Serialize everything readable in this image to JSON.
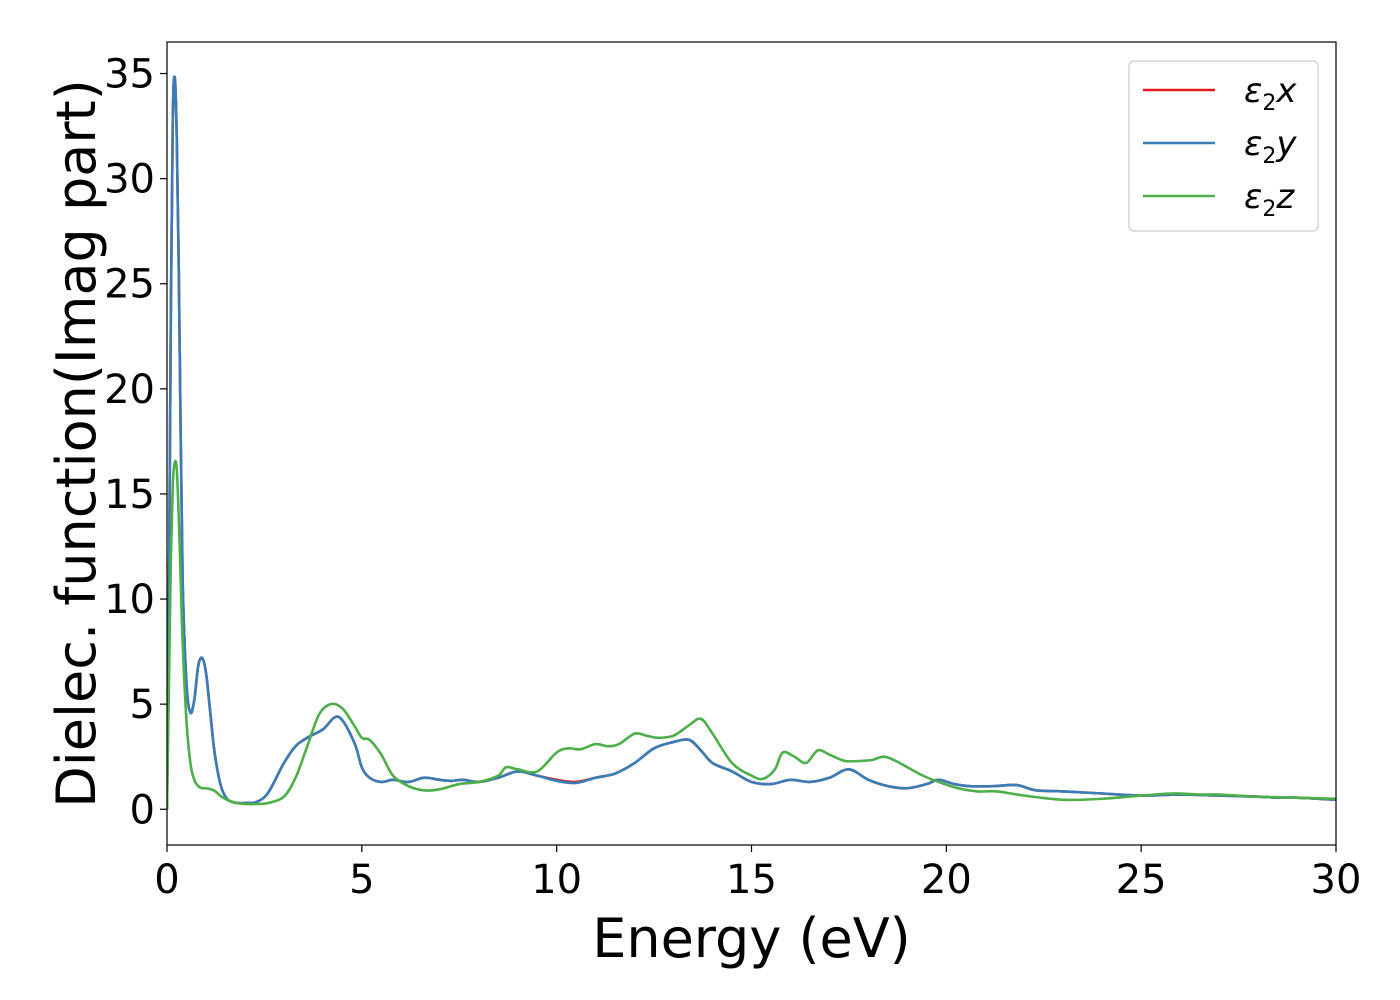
{
  "chart_data": {
    "type": "line",
    "xlabel": "Energy (eV)",
    "ylabel": "Dielec. function(Imag part)",
    "xlim": [
      0,
      30
    ],
    "ylim": [
      -1.7,
      36.5
    ],
    "xticks": [
      0,
      5,
      10,
      15,
      20,
      25,
      30
    ],
    "yticks": [
      0,
      5,
      10,
      15,
      20,
      25,
      30,
      35
    ],
    "xtick_labels": [
      "0",
      "5",
      "10",
      "15",
      "20",
      "25",
      "30"
    ],
    "ytick_labels": [
      "0",
      "5",
      "10",
      "15",
      "20",
      "25",
      "30",
      "35"
    ],
    "grid": false,
    "legend_position": "top-right",
    "series": [
      {
        "name": "ε2x",
        "name_base": "ε",
        "name_sub": "2",
        "name_tail": "x",
        "color": "#e41a1c",
        "x": [
          0,
          0.05,
          0.1,
          0.15,
          0.2,
          0.25,
          0.3,
          0.35,
          0.4,
          0.5,
          0.6,
          0.7,
          0.8,
          0.9,
          1.0,
          1.1,
          1.2,
          1.3,
          1.4,
          1.5,
          1.6,
          1.8,
          2.0,
          2.3,
          2.6,
          3.0,
          3.3,
          3.6,
          4.0,
          4.4,
          4.8,
          5.0,
          5.2,
          5.5,
          5.8,
          6.2,
          6.6,
          7.0,
          7.3,
          7.6,
          8.0,
          8.5,
          9.0,
          9.5,
          10.0,
          10.5,
          11.0,
          11.5,
          12.0,
          12.5,
          13.0,
          13.4,
          13.7,
          14.0,
          14.5,
          15.0,
          15.5,
          16.0,
          16.5,
          17.0,
          17.5,
          18.0,
          18.5,
          19.0,
          19.5,
          19.8,
          20.2,
          20.6,
          21.2,
          21.8,
          22.3,
          23.0,
          24.0,
          25.0,
          26.0,
          27.0,
          28.0,
          28.5,
          29.0,
          30.0
        ],
        "y": [
          0,
          10,
          24,
          33,
          34.8,
          32,
          26,
          18,
          11,
          6,
          4.6,
          5.2,
          6.8,
          7.2,
          6.5,
          4.8,
          3.0,
          1.8,
          1.0,
          0.6,
          0.4,
          0.3,
          0.3,
          0.35,
          0.8,
          2.2,
          3.0,
          3.4,
          3.8,
          4.4,
          3.2,
          2.0,
          1.5,
          1.3,
          1.4,
          1.3,
          1.5,
          1.4,
          1.35,
          1.4,
          1.3,
          1.5,
          1.8,
          1.6,
          1.4,
          1.3,
          1.5,
          1.7,
          2.2,
          2.9,
          3.2,
          3.3,
          2.8,
          2.2,
          1.8,
          1.3,
          1.2,
          1.4,
          1.3,
          1.5,
          1.9,
          1.4,
          1.1,
          1.0,
          1.2,
          1.4,
          1.2,
          1.1,
          1.1,
          1.15,
          0.9,
          0.85,
          0.75,
          0.65,
          0.7,
          0.65,
          0.6,
          0.55,
          0.55,
          0.45
        ]
      },
      {
        "name": "ε2y",
        "name_base": "ε",
        "name_sub": "2",
        "name_tail": "y",
        "color": "#377eb8",
        "x": [
          0,
          0.05,
          0.1,
          0.15,
          0.2,
          0.25,
          0.3,
          0.35,
          0.4,
          0.5,
          0.6,
          0.7,
          0.8,
          0.9,
          1.0,
          1.1,
          1.2,
          1.3,
          1.4,
          1.5,
          1.6,
          1.8,
          2.0,
          2.3,
          2.6,
          3.0,
          3.3,
          3.6,
          4.0,
          4.4,
          4.8,
          5.0,
          5.2,
          5.5,
          5.8,
          6.2,
          6.6,
          7.0,
          7.3,
          7.6,
          8.0,
          8.5,
          9.0,
          9.5,
          10.0,
          10.5,
          11.0,
          11.5,
          12.0,
          12.5,
          13.0,
          13.4,
          13.7,
          14.0,
          14.5,
          15.0,
          15.5,
          16.0,
          16.5,
          17.0,
          17.5,
          18.0,
          18.5,
          19.0,
          19.5,
          19.8,
          20.2,
          20.6,
          21.2,
          21.8,
          22.3,
          23.0,
          24.0,
          25.0,
          26.0,
          27.0,
          28.0,
          28.5,
          29.0,
          30.0
        ],
        "y": [
          0,
          10,
          24,
          33,
          34.8,
          32,
          26,
          18,
          11,
          6,
          4.6,
          5.2,
          6.8,
          7.2,
          6.5,
          4.8,
          3.0,
          1.8,
          1.0,
          0.6,
          0.4,
          0.3,
          0.3,
          0.35,
          0.8,
          2.2,
          3.0,
          3.4,
          3.8,
          4.4,
          3.2,
          2.0,
          1.5,
          1.3,
          1.4,
          1.3,
          1.5,
          1.4,
          1.35,
          1.4,
          1.3,
          1.5,
          1.8,
          1.6,
          1.35,
          1.25,
          1.5,
          1.7,
          2.2,
          2.9,
          3.2,
          3.3,
          2.8,
          2.2,
          1.8,
          1.3,
          1.2,
          1.4,
          1.3,
          1.5,
          1.9,
          1.4,
          1.1,
          1.0,
          1.2,
          1.4,
          1.2,
          1.1,
          1.1,
          1.15,
          0.9,
          0.85,
          0.75,
          0.65,
          0.7,
          0.65,
          0.6,
          0.55,
          0.55,
          0.45
        ]
      },
      {
        "name": "ε2z",
        "name_base": "ε",
        "name_sub": "2",
        "name_tail": "z",
        "color": "#4daf4a",
        "x": [
          0,
          0.05,
          0.1,
          0.15,
          0.2,
          0.25,
          0.3,
          0.35,
          0.4,
          0.5,
          0.6,
          0.7,
          0.8,
          0.9,
          1.0,
          1.2,
          1.4,
          1.6,
          1.8,
          2.0,
          2.3,
          2.6,
          3.0,
          3.3,
          3.6,
          3.9,
          4.2,
          4.5,
          4.8,
          5.0,
          5.2,
          5.5,
          5.8,
          6.2,
          6.6,
          7.0,
          7.5,
          8.0,
          8.5,
          8.7,
          9.0,
          9.5,
          10.0,
          10.3,
          10.6,
          11.0,
          11.3,
          11.6,
          12.0,
          12.3,
          12.6,
          13.0,
          13.4,
          13.7,
          14.0,
          14.5,
          15.0,
          15.3,
          15.6,
          15.8,
          16.1,
          16.4,
          16.7,
          17.0,
          17.4,
          17.8,
          18.1,
          18.4,
          18.7,
          19.0,
          19.4,
          19.8,
          20.3,
          20.8,
          21.3,
          22.0,
          23.0,
          24.0,
          25.0,
          25.8,
          26.5,
          27.0,
          28.0,
          29.0,
          30.0
        ],
        "y": [
          0,
          6,
          12,
          15.5,
          16.5,
          16.2,
          14,
          11,
          8,
          4.2,
          2.2,
          1.4,
          1.1,
          1.0,
          1.0,
          0.9,
          0.6,
          0.4,
          0.3,
          0.25,
          0.25,
          0.3,
          0.6,
          1.5,
          3.0,
          4.5,
          5.0,
          4.8,
          4.0,
          3.4,
          3.3,
          2.6,
          1.6,
          1.1,
          0.9,
          0.95,
          1.2,
          1.3,
          1.6,
          2.0,
          1.9,
          1.8,
          2.7,
          2.9,
          2.85,
          3.1,
          3.0,
          3.1,
          3.6,
          3.5,
          3.4,
          3.5,
          4.0,
          4.3,
          3.6,
          2.2,
          1.6,
          1.45,
          1.9,
          2.7,
          2.5,
          2.2,
          2.8,
          2.6,
          2.3,
          2.3,
          2.35,
          2.5,
          2.3,
          2.0,
          1.6,
          1.3,
          1.0,
          0.85,
          0.85,
          0.65,
          0.45,
          0.5,
          0.65,
          0.75,
          0.7,
          0.7,
          0.6,
          0.55,
          0.5
        ]
      }
    ]
  }
}
